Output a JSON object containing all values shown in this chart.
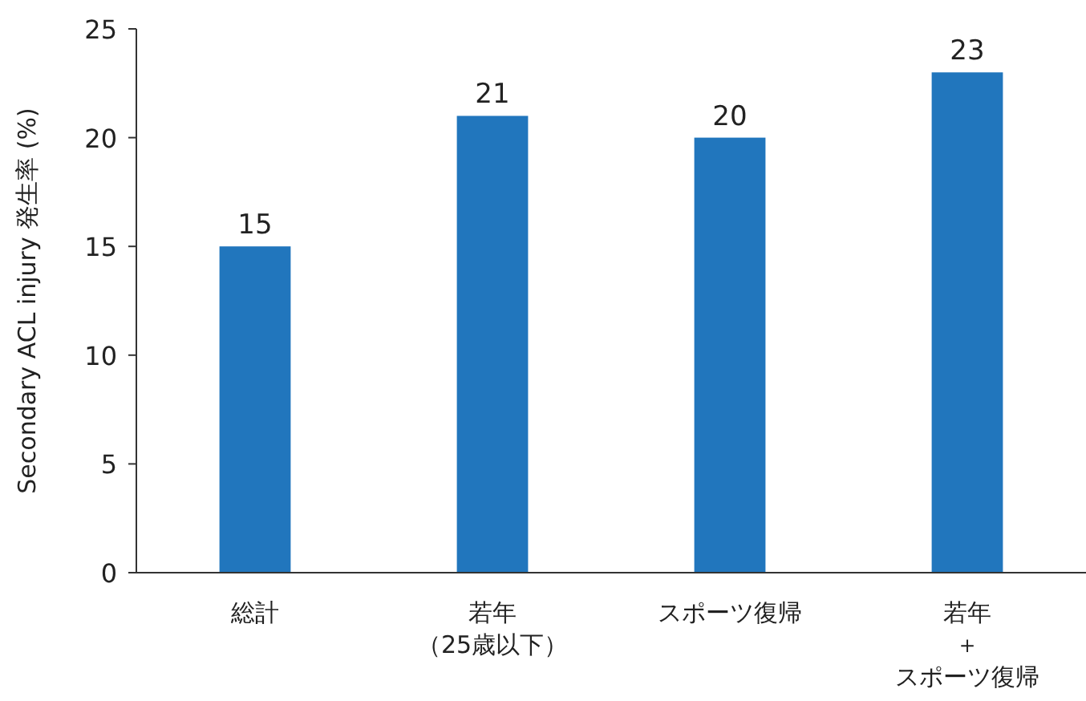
{
  "chart_data": {
    "type": "bar",
    "ylabel": "Secondary ACL injury 発生率 (%)",
    "categories": [
      "総計",
      "若年（25歳以下）",
      "スポーツ復帰",
      "若年＋スポーツ復帰"
    ],
    "values": [
      15,
      21,
      20,
      23
    ],
    "color": "#2176bd",
    "ylim": [
      0,
      25
    ],
    "yticks": [
      0,
      5,
      10,
      15,
      20,
      25
    ],
    "data_labels": true,
    "grid": false
  }
}
